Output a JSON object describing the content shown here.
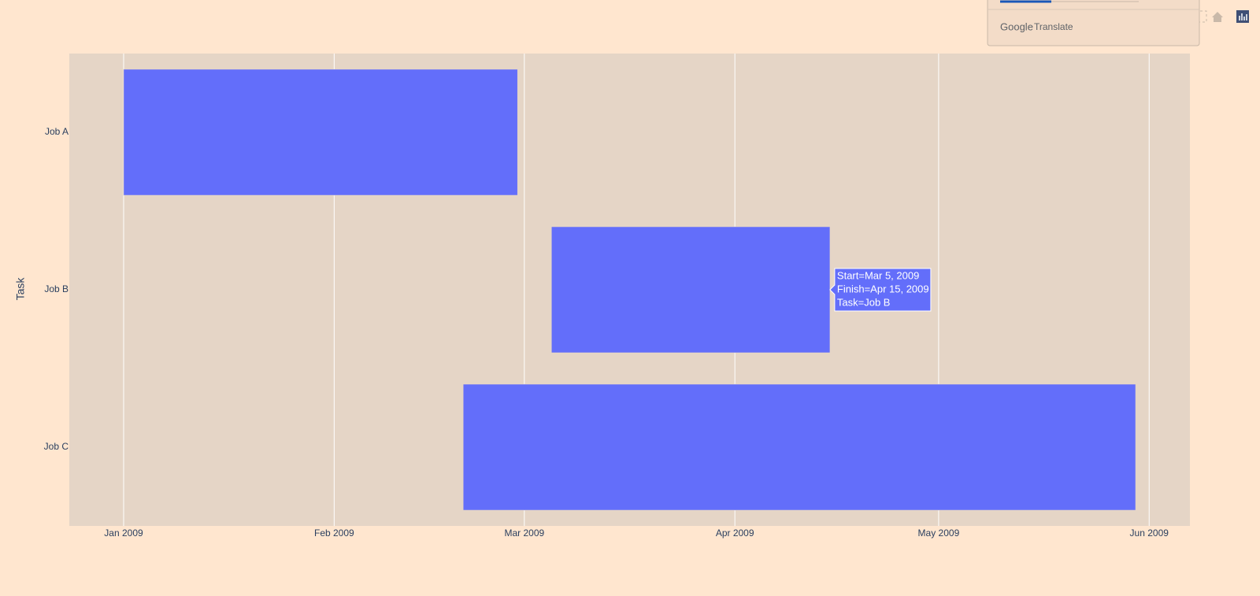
{
  "chart_data": {
    "type": "timeline",
    "y_label": "Task",
    "categories": [
      "Job A",
      "Job B",
      "Job C"
    ],
    "start": [
      "2009-01-01",
      "2009-03-05",
      "2009-02-20"
    ],
    "finish": [
      "2009-02-28",
      "2009-04-15",
      "2009-05-30"
    ],
    "color": "#636efa",
    "xlim": [
      "2008-12-24",
      "2009-06-07"
    ],
    "xticks": [
      {
        "value": "2009-01-01",
        "label": "Jan 2009"
      },
      {
        "value": "2009-02-01",
        "label": "Feb 2009"
      },
      {
        "value": "2009-03-01",
        "label": "Mar 2009"
      },
      {
        "value": "2009-04-01",
        "label": "Apr 2009"
      },
      {
        "value": "2009-05-01",
        "label": "May 2009"
      },
      {
        "value": "2009-06-01",
        "label": "Jun 2009"
      }
    ],
    "grid": true,
    "tooltip": [
      "Start=Mar 5, 2009",
      "Finish=Apr 15, 2009",
      "Task=Job B"
    ]
  },
  "translate_popup": {
    "brand": "Google",
    "label": "Translate"
  }
}
